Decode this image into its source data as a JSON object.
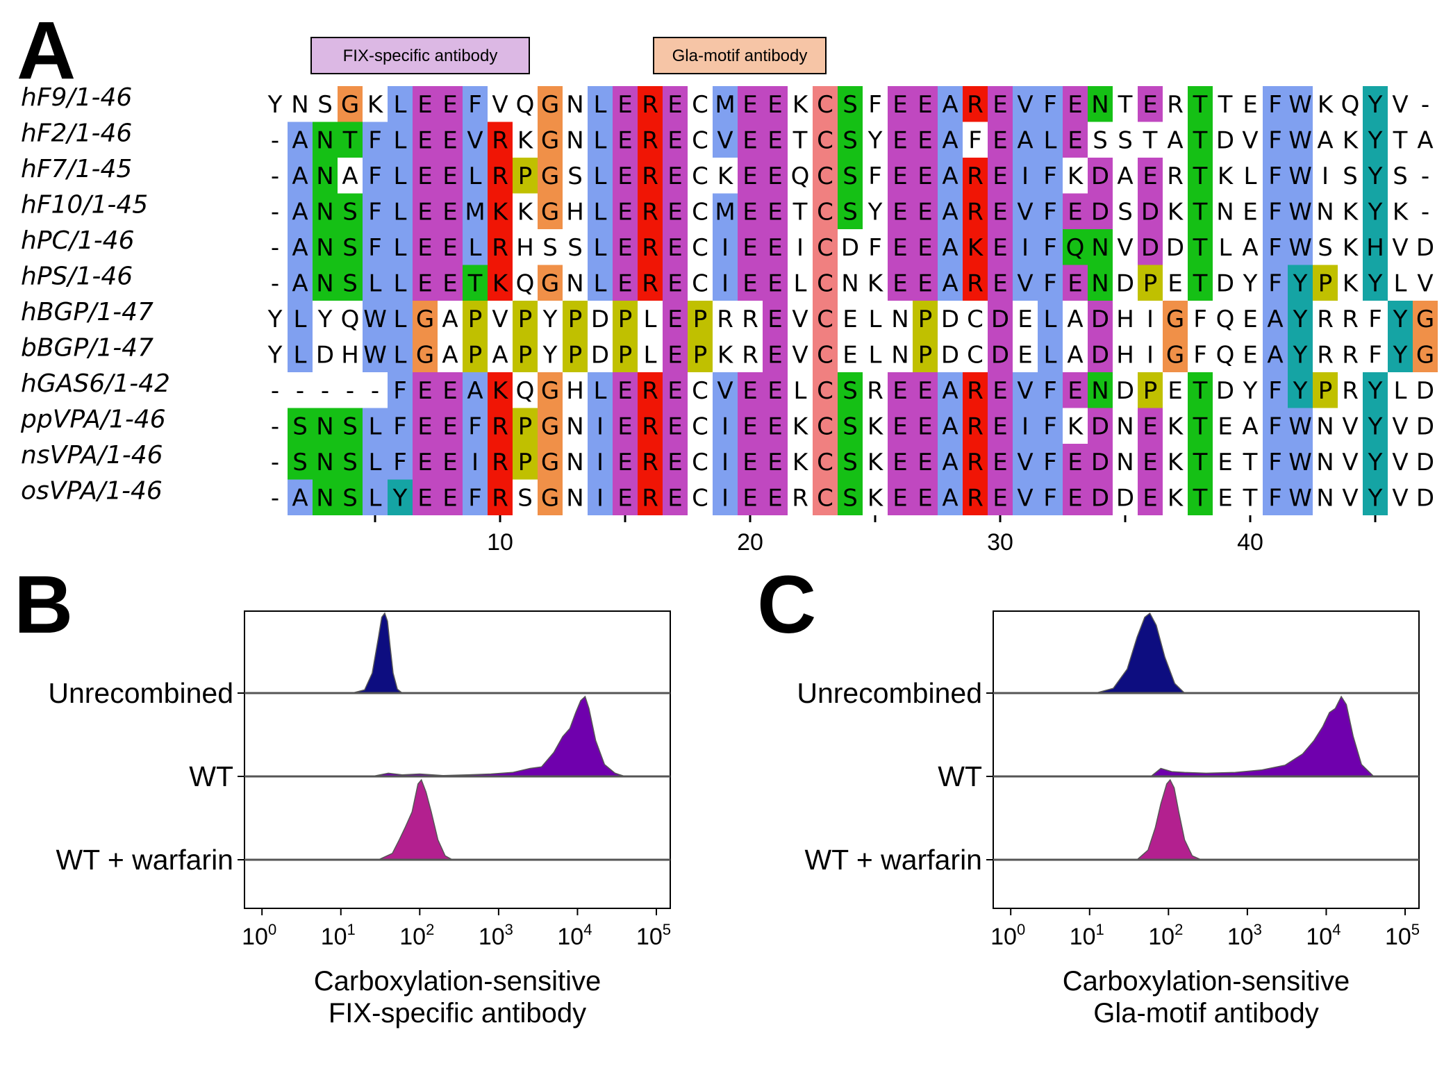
{
  "panels": {
    "a": "A",
    "b": "B",
    "c": "C"
  },
  "alignment": {
    "sequences": [
      {
        "name": "hF9/1-46",
        "seq": "YNSGKLEEFVQGNLERECMEEKCSFEEAREVFENTERTTEFWKQYV-"
      },
      {
        "name": "hF2/1-46",
        "seq": "-ANTFLEEVRKGNLERECVEETCSYEEAFEALESSTATDVFWAKYTA"
      },
      {
        "name": "hF7/1-45",
        "seq": "-ANAFLEELRPGSLERECKEEQCSFEEAREIFKDAERTKLFWISYS-"
      },
      {
        "name": "hF10/1-45",
        "seq": "-ANSFLEEMKKGHLERECMEETCSYEEAREVFEDSDKTNEFWNKYK-"
      },
      {
        "name": "hPC/1-46",
        "seq": "-ANSFLEELRHSSLERECIEEICDFEEAKEIFQNVDDTLAFWSKHVD"
      },
      {
        "name": "hPS/1-46",
        "seq": "-ANSLLEETKQGNLERECIEELCNKEEAREVFENDPETDYFYPKYLV"
      },
      {
        "name": "hBGP/1-47",
        "seq": "YLYQWLGAPVPYPDPLEPRREVCELNPDCDELADHIGFQEAYRRFYG"
      },
      {
        "name": "bBGP/1-47",
        "seq": "YLDHWLGAPAPYPDPLEPKREVCELNPDCDELADHIGFQEAYRRFYG"
      },
      {
        "name": "hGAS6/1-42",
        "seq": "-----FEEAKQGHLERECVEELCSREEAREVFENDPETDYFYPRYLD"
      },
      {
        "name": "ppVPA/1-46",
        "seq": "-SNSLFEEFRPGNIERECIEEKCSKEEAREIFKDNEKTEAFWNVYVD"
      },
      {
        "name": "nsVPA/1-46",
        "seq": "-SNSLFEEIRPGNIERECIEEKCSKEEAREVFEDNEKTETFWNVYVD"
      },
      {
        "name": "osVPA/1-46",
        "seq": "-ANSLYEEFRSGNIERECIEERCSKEEAREVFEDDEKTETFWNVYVD"
      }
    ],
    "colors": [
      "............................................#..",
      ".............................................#.",
      "..............................................",
      "..............................................."
    ],
    "ticks": [
      "10",
      "20",
      "30",
      "40"
    ],
    "annotations": [
      {
        "label": "FIX-specific antibody",
        "fill": "#dcb8e4"
      },
      {
        "label": "Gla-motif antibody",
        "fill": "#f6c5a6"
      }
    ],
    "clustal_colors": {
      "hydrophobic": "#80a0f0",
      "positive": "#f01505",
      "negative": "#c048c0",
      "polar": "#15c015",
      "cysteine": "#f08080",
      "glycine": "#f09048",
      "proline": "#c0c000",
      "aromatic": "#15a4a4"
    }
  },
  "chart_data": [
    {
      "type": "area",
      "panel": "B",
      "xlabel": "Carboxylation-sensitive FIX-specific antibody",
      "xscale": "log10",
      "xlim": [
        0.6,
        150000
      ],
      "xticks": [
        "0",
        "1",
        "2",
        "3",
        "4",
        "5"
      ],
      "series": [
        {
          "name": "Unrecombined",
          "color": "#0d0d80",
          "x": [
            14,
            20,
            25,
            30,
            33,
            36,
            39,
            42,
            46,
            52,
            60
          ],
          "y": [
            0,
            0.04,
            0.25,
            0.7,
            0.95,
            1.0,
            0.9,
            0.6,
            0.25,
            0.05,
            0
          ]
        },
        {
          "name": "WT",
          "color": "#6f00ad",
          "x": [
            25,
            40,
            60,
            100,
            200,
            400,
            800,
            1500,
            2500,
            3500,
            5000,
            6500,
            8000,
            9500,
            11000,
            12500,
            14000,
            17000,
            22000,
            30000,
            40000
          ],
          "y": [
            0,
            0.04,
            0.02,
            0.03,
            0.01,
            0.02,
            0.03,
            0.05,
            0.1,
            0.12,
            0.3,
            0.5,
            0.6,
            0.8,
            0.95,
            1.0,
            0.85,
            0.45,
            0.15,
            0.04,
            0
          ]
        },
        {
          "name": "WT + warfarin",
          "color": "#b3208f",
          "x": [
            30,
            45,
            55,
            65,
            80,
            95,
            105,
            120,
            140,
            170,
            210,
            260
          ],
          "y": [
            0,
            0.08,
            0.25,
            0.4,
            0.6,
            0.95,
            1.0,
            0.85,
            0.6,
            0.25,
            0.05,
            0
          ]
        }
      ]
    },
    {
      "type": "area",
      "panel": "C",
      "xlabel": "Carboxylation-sensitive Gla-motif antibody",
      "xscale": "log10",
      "xlim": [
        0.6,
        150000
      ],
      "xticks": [
        "0",
        "1",
        "2",
        "3",
        "4",
        "5"
      ],
      "series": [
        {
          "name": "Unrecombined",
          "color": "#0d0d80",
          "x": [
            12,
            20,
            30,
            40,
            50,
            58,
            70,
            90,
            120,
            160
          ],
          "y": [
            0,
            0.06,
            0.3,
            0.7,
            0.95,
            1.0,
            0.85,
            0.45,
            0.12,
            0
          ]
        },
        {
          "name": "WT",
          "color": "#6f00ad",
          "x": [
            60,
            80,
            110,
            160,
            300,
            700,
            1500,
            3000,
            5000,
            7000,
            9000,
            11000,
            13000,
            15500,
            18000,
            22000,
            28000,
            40000
          ],
          "y": [
            0,
            0.1,
            0.06,
            0.05,
            0.04,
            0.05,
            0.08,
            0.14,
            0.28,
            0.45,
            0.62,
            0.8,
            0.85,
            1.0,
            0.9,
            0.5,
            0.15,
            0
          ]
        },
        {
          "name": "WT + warfarin",
          "color": "#b3208f",
          "x": [
            40,
            55,
            68,
            80,
            95,
            105,
            118,
            135,
            160,
            200,
            260
          ],
          "y": [
            0,
            0.12,
            0.4,
            0.7,
            0.95,
            1.0,
            0.9,
            0.6,
            0.25,
            0.05,
            0
          ]
        }
      ]
    }
  ]
}
